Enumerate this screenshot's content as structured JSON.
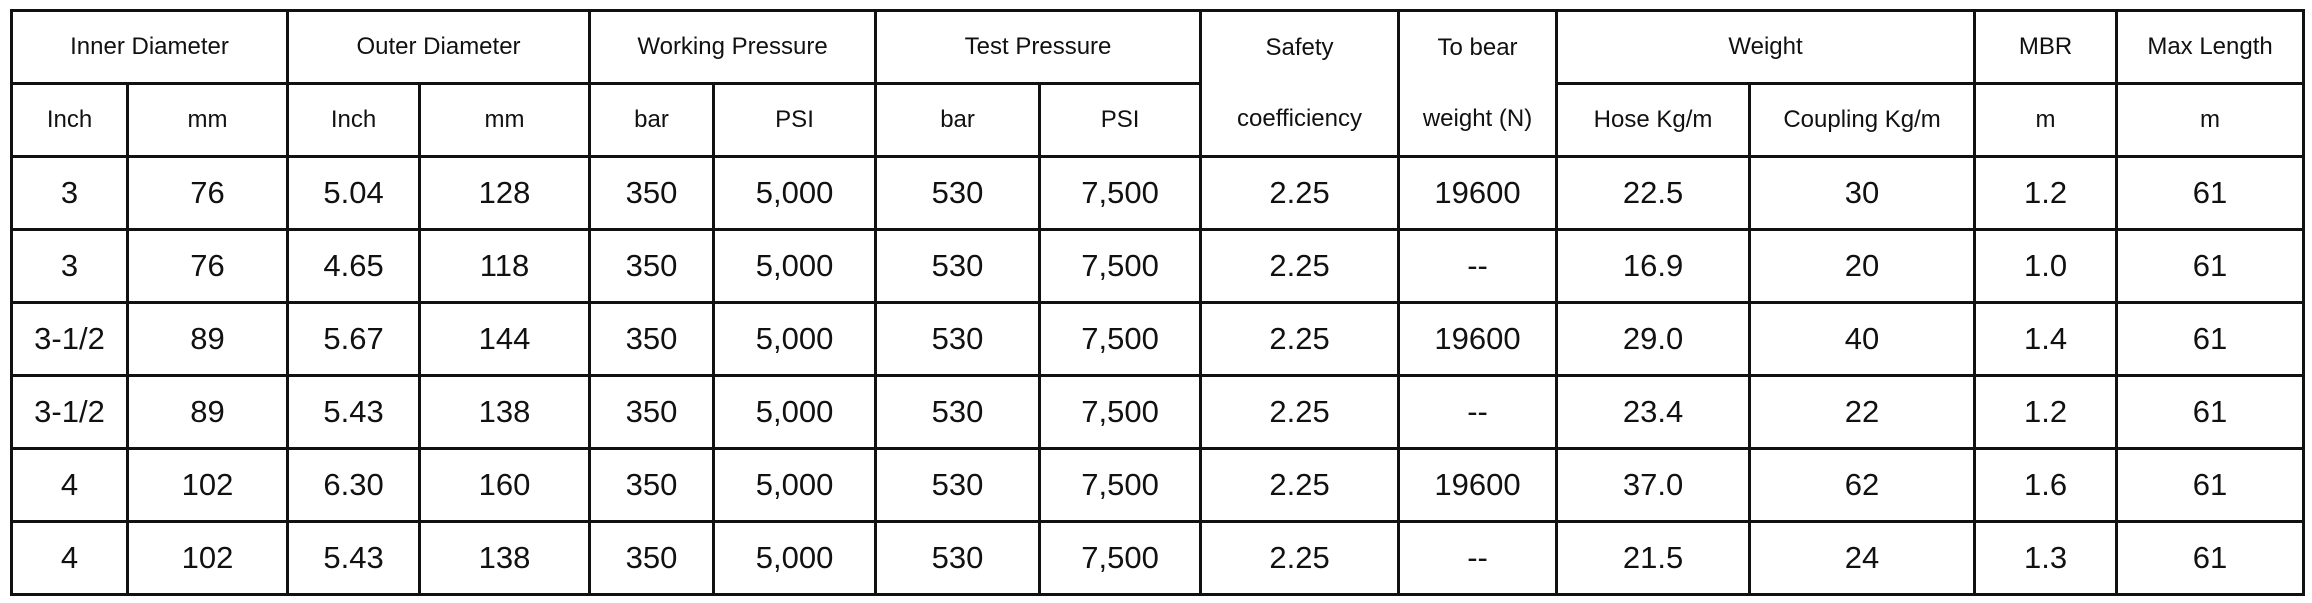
{
  "table": {
    "header_groups": {
      "inner_diameter": "Inner Diameter",
      "outer_diameter": "Outer Diameter",
      "working_pressure": "Working Pressure",
      "test_pressure": "Test Pressure",
      "safety_line1": "Safety",
      "safety_line2": "coefficiency",
      "bear_line1": "To bear",
      "bear_line2": "weight (N)",
      "weight": "Weight",
      "mbr": "MBR",
      "max_length": "Max Length"
    },
    "sub_headers": {
      "inner_inch": "Inch",
      "inner_mm": "mm",
      "outer_inch": "Inch",
      "outer_mm": "mm",
      "wp_bar": "bar",
      "wp_psi": "PSI",
      "tp_bar": "bar",
      "tp_psi": "PSI",
      "hose_kgm": "Hose Kg/m",
      "coupling_kgm": "Coupling Kg/m",
      "mbr_unit": "m",
      "max_length_unit": "m"
    },
    "rows": [
      [
        "3",
        "76",
        "5.04",
        "128",
        "350",
        "5,000",
        "530",
        "7,500",
        "2.25",
        "19600",
        "22.5",
        "30",
        "1.2",
        "61"
      ],
      [
        "3",
        "76",
        "4.65",
        "118",
        "350",
        "5,000",
        "530",
        "7,500",
        "2.25",
        "--",
        "16.9",
        "20",
        "1.0",
        "61"
      ],
      [
        "3-1/2",
        "89",
        "5.67",
        "144",
        "350",
        "5,000",
        "530",
        "7,500",
        "2.25",
        "19600",
        "29.0",
        "40",
        "1.4",
        "61"
      ],
      [
        "3-1/2",
        "89",
        "5.43",
        "138",
        "350",
        "5,000",
        "530",
        "7,500",
        "2.25",
        "--",
        "23.4",
        "22",
        "1.2",
        "61"
      ],
      [
        "4",
        "102",
        "6.30",
        "160",
        "350",
        "5,000",
        "530",
        "7,500",
        "2.25",
        "19600",
        "37.0",
        "62",
        "1.6",
        "61"
      ],
      [
        "4",
        "102",
        "5.43",
        "138",
        "350",
        "5,000",
        "530",
        "7,500",
        "2.25",
        "--",
        "21.5",
        "24",
        "1.3",
        "61"
      ]
    ]
  }
}
